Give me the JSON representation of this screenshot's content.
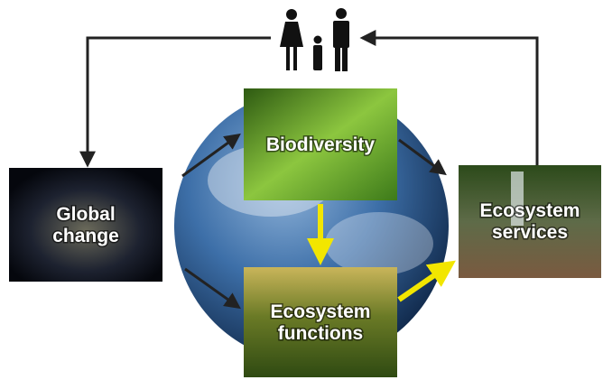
{
  "nodes": [
    {
      "id": "global-change",
      "label": [
        "Global",
        "change"
      ]
    },
    {
      "id": "biodiversity",
      "label": [
        "Biodiversity"
      ]
    },
    {
      "id": "ecosystem-functions",
      "label": [
        "Ecosystem",
        "functions"
      ]
    },
    {
      "id": "ecosystem-services",
      "label": [
        "Ecosystem",
        "services"
      ]
    }
  ]
}
